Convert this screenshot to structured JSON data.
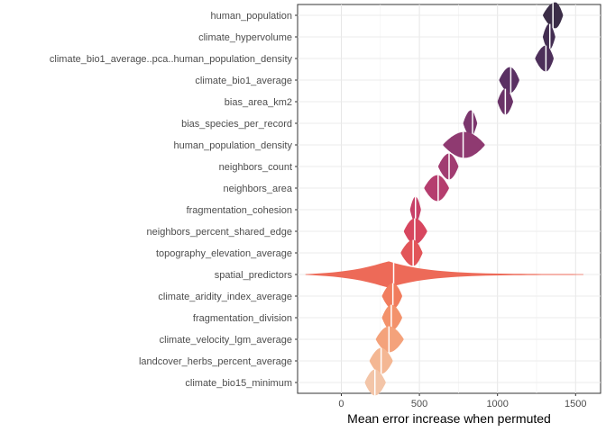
{
  "chart_data": {
    "type": "violin",
    "title": "",
    "xlabel": "Mean error increase when permuted",
    "ylabel": "",
    "xlim": [
      -280,
      1660
    ],
    "xticks": [
      0,
      500,
      1000,
      1500
    ],
    "grid": true,
    "legend": "none",
    "categories": [
      "human_population",
      "climate_hypervolume",
      "climate_bio1_average..pca..human_population_density",
      "climate_bio1_average",
      "bias_area_km2",
      "bias_species_per_record",
      "human_population_density",
      "neighbors_count",
      "neighbors_area",
      "fragmentation_cohesion",
      "neighbors_percent_shared_edge",
      "topography_elevation_average",
      "spatial_predictors",
      "climate_aridity_index_average",
      "fragmentation_division",
      "climate_velocity_lgm_average",
      "landcover_herbs_percent_average",
      "climate_bio15_minimum"
    ],
    "series": [
      {
        "median": 1355,
        "min": 1290,
        "max": 1420,
        "peak": 1370,
        "colour": "#3b2d47"
      },
      {
        "median": 1335,
        "min": 1290,
        "max": 1370,
        "peak": 1330,
        "colour": "#432e52"
      },
      {
        "median": 1310,
        "min": 1240,
        "max": 1360,
        "peak": 1310,
        "colour": "#4d2f5a"
      },
      {
        "median": 1085,
        "min": 1010,
        "max": 1140,
        "peak": 1080,
        "colour": "#5a3063"
      },
      {
        "median": 1050,
        "min": 1000,
        "max": 1100,
        "peak": 1050,
        "colour": "#6a3368"
      },
      {
        "median": 840,
        "min": 780,
        "max": 870,
        "peak": 830,
        "colour": "#7b366d"
      },
      {
        "median": 780,
        "min": 650,
        "max": 920,
        "peak": 790,
        "colour": "#8f3a71"
      },
      {
        "median": 690,
        "min": 620,
        "max": 750,
        "peak": 690,
        "colour": "#a13c71"
      },
      {
        "median": 620,
        "min": 530,
        "max": 690,
        "peak": 615,
        "colour": "#b53d6e"
      },
      {
        "median": 475,
        "min": 440,
        "max": 510,
        "peak": 475,
        "colour": "#c74068"
      },
      {
        "median": 470,
        "min": 400,
        "max": 550,
        "peak": 470,
        "colour": "#d7465f"
      },
      {
        "median": 460,
        "min": 380,
        "max": 520,
        "peak": 460,
        "colour": "#e25559"
      },
      {
        "median": 335,
        "min": -230,
        "max": 1550,
        "peak": 300,
        "colour": "#ed6a58"
      },
      {
        "median": 330,
        "min": 260,
        "max": 390,
        "peak": 330,
        "colour": "#f17c5d"
      },
      {
        "median": 320,
        "min": 260,
        "max": 390,
        "peak": 320,
        "colour": "#f3926b"
      },
      {
        "median": 305,
        "min": 220,
        "max": 400,
        "peak": 305,
        "colour": "#f4a27b"
      },
      {
        "median": 255,
        "min": 180,
        "max": 330,
        "peak": 255,
        "colour": "#f4b793"
      },
      {
        "median": 215,
        "min": 150,
        "max": 285,
        "peak": 215,
        "colour": "#f3c5a8"
      }
    ]
  }
}
